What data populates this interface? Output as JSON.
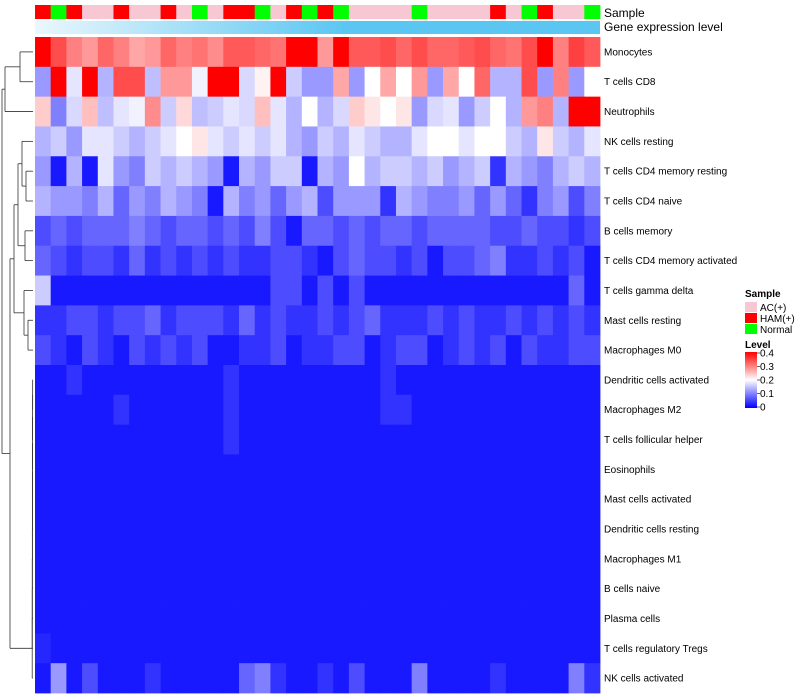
{
  "chart_data": {
    "type": "heatmap",
    "title": "",
    "color_scale": {
      "low": "#0000ff",
      "mid": "#ffffff",
      "high": "#ff0000",
      "min": 0,
      "mid_value": 0.2,
      "max": 0.4
    },
    "annotations": {
      "sample_label": "Sample",
      "expression_label": "Gene expression level",
      "expression_color": "#5bc6f2",
      "sample_values": [
        "HAM(+)",
        "Normal",
        "HAM(+)",
        "AC(+)",
        "AC(+)",
        "HAM(+)",
        "AC(+)",
        "AC(+)",
        "HAM(+)",
        "AC(+)",
        "Normal",
        "AC(+)",
        "HAM(+)",
        "HAM(+)",
        "Normal",
        "AC(+)",
        "HAM(+)",
        "Normal",
        "HAM(+)",
        "Normal",
        "AC(+)",
        "AC(+)",
        "AC(+)",
        "AC(+)",
        "Normal",
        "AC(+)",
        "AC(+)",
        "AC(+)",
        "AC(+)",
        "HAM(+)",
        "AC(+)",
        "Normal",
        "HAM(+)",
        "AC(+)",
        "AC(+)",
        "Normal"
      ]
    },
    "legend": {
      "sample_title": "Sample",
      "sample_entries": [
        {
          "label": "AC(+)",
          "color": "#f7c8d4"
        },
        {
          "label": "HAM(+)",
          "color": "#ff0000"
        },
        {
          "label": "Normal",
          "color": "#00ff00"
        }
      ],
      "level_title": "Level",
      "level_ticks": [
        "0.4",
        "0.3",
        "0.2",
        "0.1",
        "0"
      ]
    },
    "rows": [
      "Monocytes",
      "T cells CD8",
      "Neutrophils",
      "NK cells resting",
      "T cells CD4 memory resting",
      "T cells CD4 naive",
      "B cells memory",
      "T cells CD4 memory activated",
      "T cells gamma delta",
      "Mast cells resting",
      "Macrophages M0",
      "Dendritic cells activated",
      "Macrophages M2",
      "T cells follicular helper",
      "Eosinophils",
      "Mast cells activated",
      "Dendritic cells resting",
      "Macrophages M1",
      "B cells naive",
      "Plasma cells",
      "T cells regulatory  Tregs",
      "NK cells activated"
    ],
    "values": [
      [
        0.4,
        0.34,
        0.3,
        0.28,
        0.32,
        0.3,
        0.27,
        0.28,
        0.32,
        0.3,
        0.31,
        0.29,
        0.33,
        0.33,
        0.32,
        0.31,
        0.4,
        0.4,
        0.28,
        0.4,
        0.33,
        0.33,
        0.34,
        0.32,
        0.34,
        0.32,
        0.32,
        0.33,
        0.34,
        0.32,
        0.31,
        0.34,
        0.4,
        0.3,
        0.35,
        0.33
      ],
      [
        0.12,
        0.4,
        0.18,
        0.4,
        0.14,
        0.34,
        0.34,
        0.15,
        0.28,
        0.28,
        0.19,
        0.4,
        0.4,
        0.17,
        0.21,
        0.4,
        0.16,
        0.12,
        0.12,
        0.27,
        0.12,
        0.2,
        0.27,
        0.2,
        0.28,
        0.12,
        0.27,
        0.2,
        0.32,
        0.14,
        0.14,
        0.34,
        0.12,
        0.3,
        0.12,
        0.2
      ],
      [
        0.24,
        0.1,
        0.17,
        0.25,
        0.15,
        0.18,
        0.19,
        0.29,
        0.16,
        0.23,
        0.15,
        0.16,
        0.18,
        0.17,
        0.25,
        0.18,
        0.14,
        0.2,
        0.14,
        0.17,
        0.24,
        0.22,
        0.2,
        0.22,
        0.12,
        0.17,
        0.18,
        0.12,
        0.16,
        0.2,
        0.14,
        0.28,
        0.3,
        0.14,
        0.4,
        0.4
      ],
      [
        0.14,
        0.16,
        0.12,
        0.18,
        0.18,
        0.16,
        0.14,
        0.16,
        0.18,
        0.2,
        0.22,
        0.18,
        0.16,
        0.18,
        0.16,
        0.18,
        0.14,
        0.12,
        0.16,
        0.14,
        0.18,
        0.16,
        0.14,
        0.14,
        0.18,
        0.2,
        0.2,
        0.18,
        0.2,
        0.2,
        0.16,
        0.14,
        0.22,
        0.16,
        0.14,
        0.18
      ],
      [
        0.12,
        0.02,
        0.14,
        0.02,
        0.18,
        0.12,
        0.1,
        0.16,
        0.14,
        0.16,
        0.14,
        0.12,
        0.02,
        0.14,
        0.12,
        0.16,
        0.16,
        0.02,
        0.14,
        0.12,
        0.2,
        0.14,
        0.16,
        0.16,
        0.14,
        0.16,
        0.12,
        0.14,
        0.16,
        0.04,
        0.14,
        0.12,
        0.1,
        0.14,
        0.16,
        0.14
      ],
      [
        0.14,
        0.12,
        0.12,
        0.1,
        0.14,
        0.08,
        0.12,
        0.1,
        0.14,
        0.12,
        0.1,
        0.02,
        0.14,
        0.1,
        0.12,
        0.08,
        0.12,
        0.14,
        0.06,
        0.12,
        0.12,
        0.12,
        0.04,
        0.14,
        0.12,
        0.1,
        0.1,
        0.12,
        0.08,
        0.12,
        0.08,
        0.04,
        0.1,
        0.12,
        0.06,
        0.1
      ],
      [
        0.06,
        0.08,
        0.06,
        0.08,
        0.08,
        0.08,
        0.1,
        0.08,
        0.06,
        0.08,
        0.08,
        0.06,
        0.08,
        0.06,
        0.1,
        0.06,
        0.02,
        0.08,
        0.08,
        0.06,
        0.08,
        0.06,
        0.08,
        0.08,
        0.06,
        0.08,
        0.08,
        0.08,
        0.08,
        0.06,
        0.06,
        0.08,
        0.06,
        0.06,
        0.04,
        0.06
      ],
      [
        0.08,
        0.06,
        0.04,
        0.06,
        0.06,
        0.04,
        0.08,
        0.04,
        0.06,
        0.04,
        0.06,
        0.04,
        0.06,
        0.04,
        0.04,
        0.06,
        0.06,
        0.04,
        0.02,
        0.06,
        0.08,
        0.06,
        0.06,
        0.04,
        0.06,
        0.02,
        0.06,
        0.06,
        0.08,
        0.1,
        0.04,
        0.04,
        0.06,
        0.04,
        0.06,
        0.02
      ],
      [
        0.16,
        0.02,
        0.02,
        0.02,
        0.02,
        0.02,
        0.02,
        0.02,
        0.02,
        0.02,
        0.02,
        0.02,
        0.02,
        0.02,
        0.02,
        0.06,
        0.06,
        0.02,
        0.06,
        0.02,
        0.06,
        0.02,
        0.02,
        0.02,
        0.02,
        0.02,
        0.02,
        0.02,
        0.02,
        0.02,
        0.02,
        0.02,
        0.02,
        0.02,
        0.08,
        0.02
      ],
      [
        0.04,
        0.04,
        0.06,
        0.06,
        0.04,
        0.06,
        0.06,
        0.08,
        0.04,
        0.06,
        0.06,
        0.06,
        0.04,
        0.08,
        0.04,
        0.06,
        0.04,
        0.04,
        0.06,
        0.04,
        0.06,
        0.08,
        0.04,
        0.04,
        0.04,
        0.06,
        0.04,
        0.06,
        0.04,
        0.04,
        0.06,
        0.04,
        0.06,
        0.04,
        0.06,
        0.04
      ],
      [
        0.06,
        0.04,
        0.02,
        0.06,
        0.04,
        0.02,
        0.06,
        0.04,
        0.06,
        0.04,
        0.06,
        0.02,
        0.02,
        0.04,
        0.04,
        0.06,
        0.02,
        0.04,
        0.04,
        0.06,
        0.06,
        0.02,
        0.04,
        0.06,
        0.06,
        0.02,
        0.04,
        0.06,
        0.04,
        0.06,
        0.02,
        0.06,
        0.04,
        0.04,
        0.06,
        0.06
      ],
      [
        0.02,
        0.02,
        0.04,
        0.02,
        0.02,
        0.02,
        0.02,
        0.02,
        0.02,
        0.02,
        0.02,
        0.02,
        0.04,
        0.02,
        0.02,
        0.02,
        0.02,
        0.02,
        0.02,
        0.02,
        0.02,
        0.02,
        0.04,
        0.02,
        0.02,
        0.02,
        0.02,
        0.02,
        0.02,
        0.02,
        0.02,
        0.02,
        0.02,
        0.02,
        0.02,
        0.02
      ],
      [
        0.02,
        0.02,
        0.02,
        0.02,
        0.02,
        0.04,
        0.02,
        0.02,
        0.02,
        0.02,
        0.02,
        0.02,
        0.04,
        0.02,
        0.02,
        0.02,
        0.02,
        0.02,
        0.02,
        0.02,
        0.02,
        0.02,
        0.04,
        0.04,
        0.02,
        0.02,
        0.02,
        0.02,
        0.02,
        0.02,
        0.02,
        0.02,
        0.02,
        0.02,
        0.02,
        0.02
      ],
      [
        0.02,
        0.02,
        0.02,
        0.02,
        0.02,
        0.02,
        0.02,
        0.02,
        0.02,
        0.02,
        0.02,
        0.02,
        0.04,
        0.02,
        0.02,
        0.02,
        0.02,
        0.02,
        0.02,
        0.02,
        0.02,
        0.02,
        0.02,
        0.02,
        0.02,
        0.02,
        0.02,
        0.02,
        0.02,
        0.02,
        0.02,
        0.02,
        0.02,
        0.02,
        0.02,
        0.02
      ],
      [
        0.02,
        0.02,
        0.02,
        0.02,
        0.02,
        0.02,
        0.02,
        0.02,
        0.02,
        0.02,
        0.02,
        0.02,
        0.02,
        0.02,
        0.02,
        0.02,
        0.02,
        0.02,
        0.02,
        0.02,
        0.02,
        0.02,
        0.02,
        0.02,
        0.02,
        0.02,
        0.02,
        0.02,
        0.02,
        0.02,
        0.02,
        0.02,
        0.02,
        0.02,
        0.02,
        0.02
      ],
      [
        0.02,
        0.02,
        0.02,
        0.02,
        0.02,
        0.02,
        0.02,
        0.02,
        0.02,
        0.02,
        0.02,
        0.02,
        0.02,
        0.02,
        0.02,
        0.02,
        0.02,
        0.02,
        0.02,
        0.02,
        0.02,
        0.02,
        0.02,
        0.02,
        0.02,
        0.02,
        0.02,
        0.02,
        0.02,
        0.02,
        0.02,
        0.02,
        0.02,
        0.02,
        0.02,
        0.02
      ],
      [
        0.02,
        0.02,
        0.02,
        0.02,
        0.02,
        0.02,
        0.02,
        0.02,
        0.02,
        0.02,
        0.02,
        0.02,
        0.02,
        0.02,
        0.02,
        0.02,
        0.02,
        0.02,
        0.02,
        0.02,
        0.02,
        0.02,
        0.02,
        0.02,
        0.02,
        0.02,
        0.02,
        0.02,
        0.02,
        0.02,
        0.02,
        0.02,
        0.02,
        0.02,
        0.02,
        0.02
      ],
      [
        0.02,
        0.02,
        0.02,
        0.02,
        0.02,
        0.02,
        0.02,
        0.02,
        0.02,
        0.02,
        0.02,
        0.02,
        0.02,
        0.02,
        0.02,
        0.02,
        0.02,
        0.02,
        0.02,
        0.02,
        0.02,
        0.02,
        0.02,
        0.02,
        0.02,
        0.02,
        0.02,
        0.02,
        0.02,
        0.02,
        0.02,
        0.02,
        0.02,
        0.02,
        0.02,
        0.02
      ],
      [
        0.02,
        0.02,
        0.02,
        0.02,
        0.02,
        0.02,
        0.02,
        0.02,
        0.02,
        0.02,
        0.02,
        0.02,
        0.02,
        0.02,
        0.02,
        0.02,
        0.02,
        0.02,
        0.02,
        0.02,
        0.02,
        0.02,
        0.02,
        0.02,
        0.02,
        0.02,
        0.02,
        0.02,
        0.02,
        0.02,
        0.02,
        0.02,
        0.02,
        0.02,
        0.02,
        0.02
      ],
      [
        0.02,
        0.02,
        0.02,
        0.02,
        0.02,
        0.02,
        0.02,
        0.02,
        0.02,
        0.02,
        0.02,
        0.02,
        0.02,
        0.02,
        0.02,
        0.02,
        0.02,
        0.02,
        0.02,
        0.02,
        0.02,
        0.02,
        0.02,
        0.02,
        0.02,
        0.02,
        0.02,
        0.02,
        0.02,
        0.02,
        0.02,
        0.02,
        0.02,
        0.02,
        0.02,
        0.02
      ],
      [
        0.03,
        0.02,
        0.02,
        0.02,
        0.02,
        0.02,
        0.02,
        0.02,
        0.02,
        0.02,
        0.02,
        0.02,
        0.02,
        0.02,
        0.02,
        0.02,
        0.02,
        0.02,
        0.02,
        0.02,
        0.02,
        0.02,
        0.02,
        0.02,
        0.02,
        0.02,
        0.02,
        0.02,
        0.02,
        0.02,
        0.02,
        0.02,
        0.02,
        0.02,
        0.02,
        0.02
      ],
      [
        0.02,
        0.12,
        0.02,
        0.06,
        0.02,
        0.02,
        0.02,
        0.04,
        0.02,
        0.02,
        0.02,
        0.02,
        0.02,
        0.08,
        0.1,
        0.04,
        0.02,
        0.02,
        0.04,
        0.02,
        0.06,
        0.02,
        0.02,
        0.02,
        0.1,
        0.02,
        0.02,
        0.02,
        0.02,
        0.04,
        0.02,
        0.02,
        0.02,
        0.02,
        0.1,
        0.04
      ]
    ]
  }
}
